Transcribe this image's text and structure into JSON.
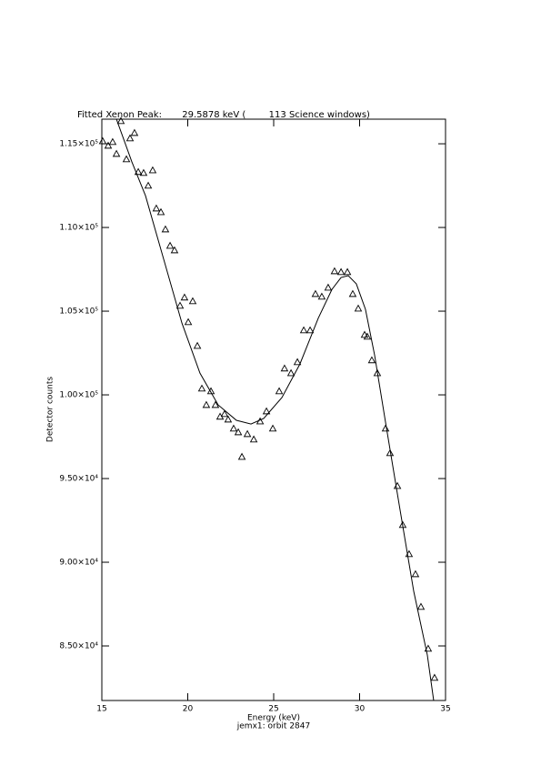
{
  "chart_data": {
    "type": "scatter",
    "title": "Fitted Xenon Peak:       29.5878 keV (        113 Science windows)",
    "xlabel": "Energy (keV)",
    "subtitle": "jemx1: orbit 2847",
    "ylabel": "Detector counts",
    "xlim": [
      15,
      35
    ],
    "xticks": [
      15,
      20,
      25,
      30,
      35
    ],
    "ylim": [
      81740,
      116470
    ],
    "yticks": [
      {
        "value": 85000,
        "label": "8.50×10⁴"
      },
      {
        "value": 90000,
        "label": "9.00×10⁴"
      },
      {
        "value": 95000,
        "label": "9.50×10⁴"
      },
      {
        "value": 100000,
        "label": "1.00×10⁵"
      },
      {
        "value": 105000,
        "label": "1.05×10⁵"
      },
      {
        "value": 110000,
        "label": "1.10×10⁵"
      },
      {
        "value": 115000,
        "label": "1.15×10⁵"
      }
    ],
    "series": [
      {
        "marker": "triangle",
        "color": "#000000",
        "x": [
          15.05,
          15.37,
          15.63,
          15.85,
          16.11,
          16.43,
          16.64,
          16.9,
          17.12,
          17.43,
          17.7,
          17.96,
          18.17,
          18.44,
          18.7,
          18.97,
          19.23,
          19.55,
          19.81,
          20.03,
          20.29,
          20.56,
          20.82,
          21.08,
          21.35,
          21.61,
          21.88,
          22.14,
          22.35,
          22.67,
          22.94,
          23.15,
          23.47,
          23.84,
          24.21,
          24.58,
          24.95,
          25.32,
          25.63,
          26.01,
          26.38,
          26.75,
          27.12,
          27.43,
          27.8,
          28.17,
          28.54,
          28.92,
          29.29,
          29.6,
          29.92,
          30.29,
          30.45,
          30.71,
          31.03,
          31.51,
          31.77,
          32.2,
          32.51,
          32.88,
          33.25,
          33.57,
          33.99,
          34.36
        ],
        "values": [
          115160,
          114890,
          115110,
          114400,
          116360,
          114080,
          115330,
          115650,
          113320,
          113260,
          112500,
          113420,
          111140,
          110920,
          109890,
          108910,
          108640,
          105330,
          105820,
          104350,
          105600,
          102930,
          100380,
          99400,
          100220,
          99400,
          98700,
          98860,
          98530,
          97990,
          97770,
          96300,
          97660,
          97340,
          98420,
          99020,
          97990,
          100220,
          101580,
          101300,
          101960,
          103860,
          103860,
          106030,
          105870,
          106410,
          107390,
          107340,
          107340,
          106030,
          105160,
          103590,
          103480,
          102070,
          101300,
          97990,
          96520,
          94560,
          92230,
          90490,
          89290,
          87340,
          84840,
          83100
        ]
      },
      {
        "style": "line",
        "color": "#000000",
        "x": [
          15.85,
          16.75,
          17.54,
          18.6,
          19.66,
          20.71,
          21.77,
          22.83,
          23.68,
          24.42,
          25.48,
          26.53,
          27.59,
          28.39,
          28.92,
          29.34,
          29.81,
          30.34,
          30.87,
          31.56,
          32.35,
          33.15,
          33.94,
          34.31
        ],
        "values": [
          116470,
          113910,
          111900,
          108100,
          104290,
          101300,
          99400,
          98480,
          98260,
          98590,
          99840,
          101850,
          104570,
          106300,
          107010,
          107120,
          106630,
          105110,
          102390,
          98040,
          93150,
          88260,
          84460,
          81740
        ]
      }
    ]
  }
}
